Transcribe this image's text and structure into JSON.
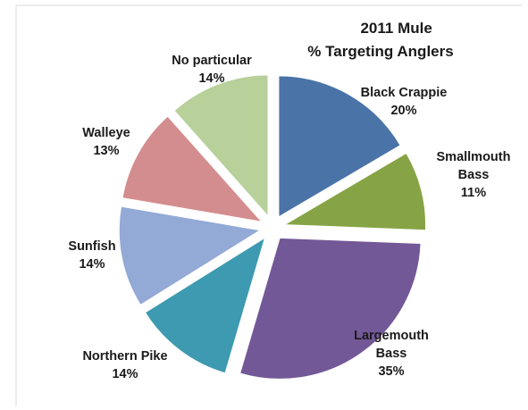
{
  "chart_data": {
    "type": "pie",
    "title": [
      "2011 Mule",
      "% Targeting Anglers"
    ],
    "slices": [
      {
        "name": "Black Crappie",
        "label_lines": [
          "Black Crappie",
          "20%"
        ],
        "value": 20,
        "color": "#4a73a8"
      },
      {
        "name": "Smallmouth Bass",
        "label_lines": [
          "Smallmouth",
          "Bass",
          "11%"
        ],
        "value": 11,
        "color": "#86a446"
      },
      {
        "name": "Largemouth Bass",
        "label_lines": [
          "Largemouth",
          "Bass",
          "35%"
        ],
        "value": 35,
        "color": "#735898"
      },
      {
        "name": "Northern Pike",
        "label_lines": [
          "Northern Pike",
          "14%"
        ],
        "value": 14,
        "color": "#3d9ab0"
      },
      {
        "name": "Sunfish",
        "label_lines": [
          "Sunfish",
          "14%"
        ],
        "value": 14,
        "color": "#93a9d6"
      },
      {
        "name": "Walleye",
        "label_lines": [
          "Walleye",
          "13%"
        ],
        "value": 13,
        "color": "#d48d8e"
      },
      {
        "name": "No particular",
        "label_lines": [
          "No particular",
          "14%"
        ],
        "value": 14,
        "color": "#b8d09a"
      }
    ],
    "legend": "none"
  }
}
